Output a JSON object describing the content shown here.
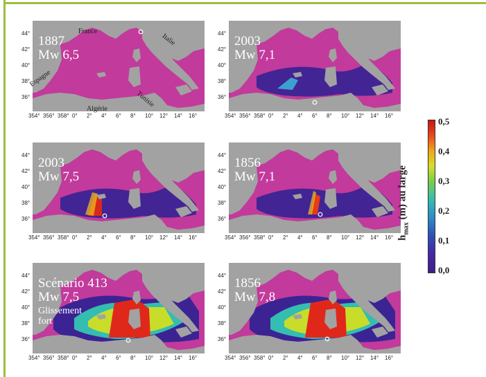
{
  "panels": [
    {
      "title_year": "1887",
      "title_mw": "Mw 6,5",
      "extra": ""
    },
    {
      "title_year": "2003",
      "title_mw": "Mw 7,1",
      "extra": ""
    },
    {
      "title_year": "2003",
      "title_mw": "Mw 7,5",
      "extra": ""
    },
    {
      "title_year": "1856",
      "title_mw": "Mw 7,1",
      "extra": ""
    },
    {
      "title_year": "Scénario 413",
      "title_mw": "Mw 7,5",
      "extra": "Glissement fort"
    },
    {
      "title_year": "1856",
      "title_mw": "Mw 7,8",
      "extra": ""
    }
  ],
  "countries": {
    "france": "France",
    "italie": "Italie",
    "espagne": "Espagne",
    "algerie": "Algérie",
    "tunisie": "Tunisie"
  },
  "lat_ticks": [
    "44°",
    "42°",
    "40°",
    "38°",
    "36°"
  ],
  "lon_ticks": [
    "354°",
    "356°",
    "358°",
    "0°",
    "2°",
    "4°",
    "6°",
    "8°",
    "10°",
    "12°",
    "14°",
    "16°"
  ],
  "colorbar": {
    "ticks": [
      "0,5",
      "0,4",
      "0,3",
      "0,2",
      "0,1",
      "0,0"
    ],
    "title_main": "h",
    "title_sub": "max",
    "title_rest": " (m) au large"
  },
  "colors": {
    "land": "#a2a2a2",
    "sea_low": "#c23a9b",
    "frame": "#9bbf3a"
  },
  "wave_levels": [
    0.0,
    0.05,
    0.1,
    0.1,
    0.4,
    0.5
  ]
}
